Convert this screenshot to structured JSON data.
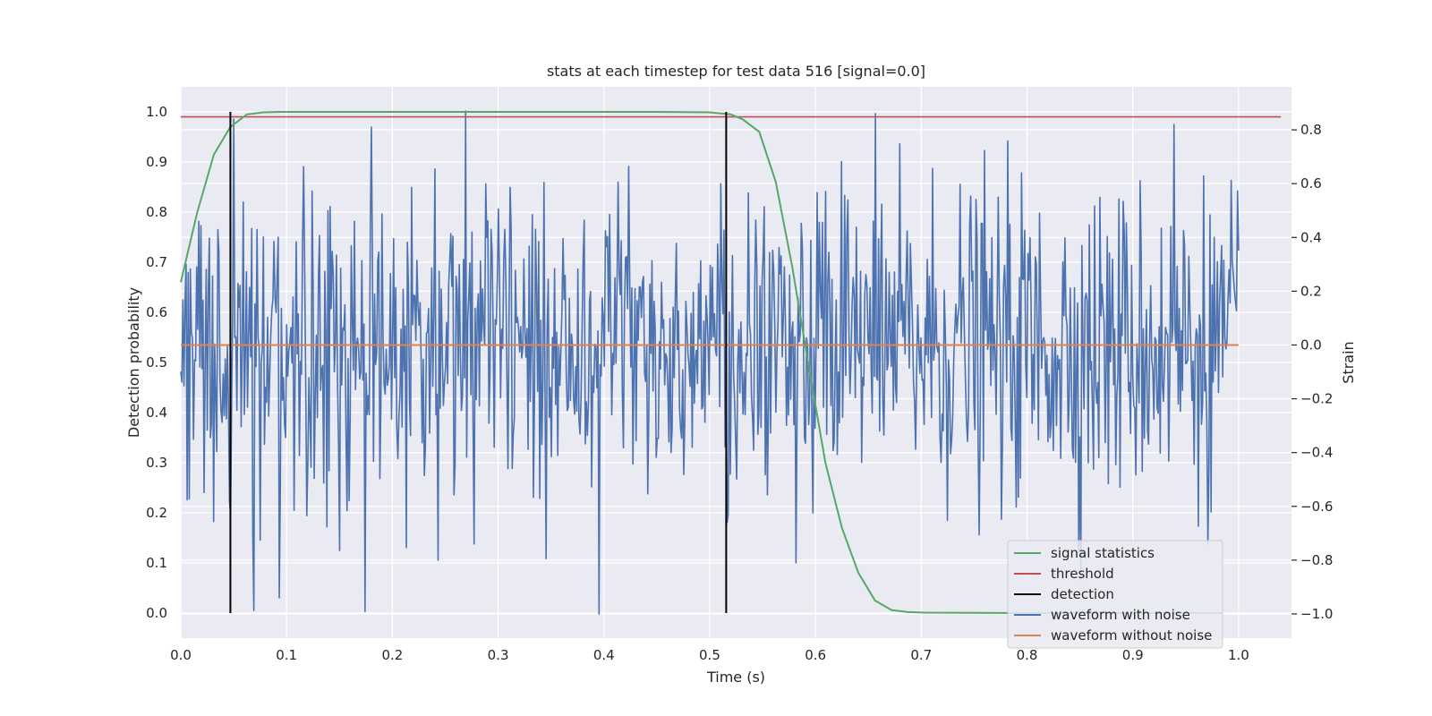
{
  "chart_data": {
    "type": "line",
    "title": "stats at each timestep for test data 516 [signal=0.0]",
    "xlabel": "Time (s)",
    "ylabel": "Detection probability",
    "y2label": "Strain",
    "xlim": [
      0.0,
      1.05
    ],
    "ylim": [
      -0.05,
      1.05
    ],
    "y2lim": [
      -1.09,
      0.96
    ],
    "x_ticks": [
      "0.0",
      "0.1",
      "0.2",
      "0.3",
      "0.4",
      "0.5",
      "0.6",
      "0.7",
      "0.8",
      "0.9",
      "1.0"
    ],
    "y_ticks": [
      "0.0",
      "0.1",
      "0.2",
      "0.3",
      "0.4",
      "0.5",
      "0.6",
      "0.7",
      "0.8",
      "0.9",
      "1.0"
    ],
    "y2_ticks": [
      "−1.0",
      "−0.8",
      "−0.6",
      "−0.4",
      "−0.2",
      "0.0",
      "0.2",
      "0.4",
      "0.6",
      "0.8"
    ],
    "grid": true,
    "legend_position": "bottom-right",
    "colors": {
      "signal_statistics": "#55a868",
      "threshold": "#c44e52",
      "detection": "#000000",
      "waveform_with_noise": "#4c72b0",
      "waveform_without_noise": "#dd8452",
      "plot_background": "#eaeaf2",
      "grid": "#ffffff"
    },
    "legend": [
      "signal statistics",
      "threshold",
      "detection",
      "waveform with noise",
      "waveform without noise"
    ],
    "series": [
      {
        "name": "signal statistics",
        "axis": "left",
        "x": [
          0.0,
          0.0156,
          0.0313,
          0.0469,
          0.0625,
          0.0781,
          0.0938,
          0.1,
          0.2,
          0.3,
          0.4,
          0.45,
          0.5,
          0.52,
          0.5313,
          0.5469,
          0.5625,
          0.5781,
          0.5938,
          0.6094,
          0.625,
          0.6406,
          0.6563,
          0.6719,
          0.6875,
          0.7031,
          0.8,
          0.9,
          0.985
        ],
        "y": [
          0.66,
          0.8,
          0.915,
          0.97,
          0.995,
          0.999,
          1.0,
          1.0,
          1.0,
          1.0,
          1.0,
          1.0,
          0.999,
          0.995,
          0.985,
          0.96,
          0.86,
          0.69,
          0.49,
          0.3,
          0.17,
          0.08,
          0.025,
          0.006,
          0.002,
          0.001,
          0.0,
          0.0,
          0.0
        ]
      },
      {
        "name": "threshold",
        "axis": "left",
        "x": [
          0.0,
          1.04
        ],
        "y": [
          0.99,
          0.99
        ]
      },
      {
        "name": "detection",
        "axis": "left",
        "segments": [
          {
            "x": 0.0469,
            "y": [
              0.0,
              1.0
            ]
          },
          {
            "x": 0.5156,
            "y": [
              0.0,
              1.0
            ]
          }
        ]
      },
      {
        "name": "waveform with noise",
        "axis": "right",
        "x_range": [
          0.0,
          1.0
        ],
        "n_points": 1000,
        "std": 0.29,
        "y_range": [
          -1.0,
          0.88
        ],
        "samples": [
          {
            "x": 0.005,
            "y": 0.3
          },
          {
            "x": 0.046,
            "y": -0.58
          },
          {
            "x": 0.05,
            "y": 0.84
          },
          {
            "x": 0.0928,
            "y": -0.94
          },
          {
            "x": 0.18,
            "y": 0.81
          },
          {
            "x": 0.243,
            "y": -0.8
          },
          {
            "x": 0.269,
            "y": 0.87
          },
          {
            "x": 0.395,
            "y": -1.0
          },
          {
            "x": 0.582,
            "y": -0.81
          },
          {
            "x": 0.939,
            "y": 0.82
          }
        ]
      },
      {
        "name": "waveform without noise",
        "axis": "right",
        "x": [
          0.0,
          1.0
        ],
        "y": [
          0.0,
          0.0
        ]
      }
    ]
  }
}
